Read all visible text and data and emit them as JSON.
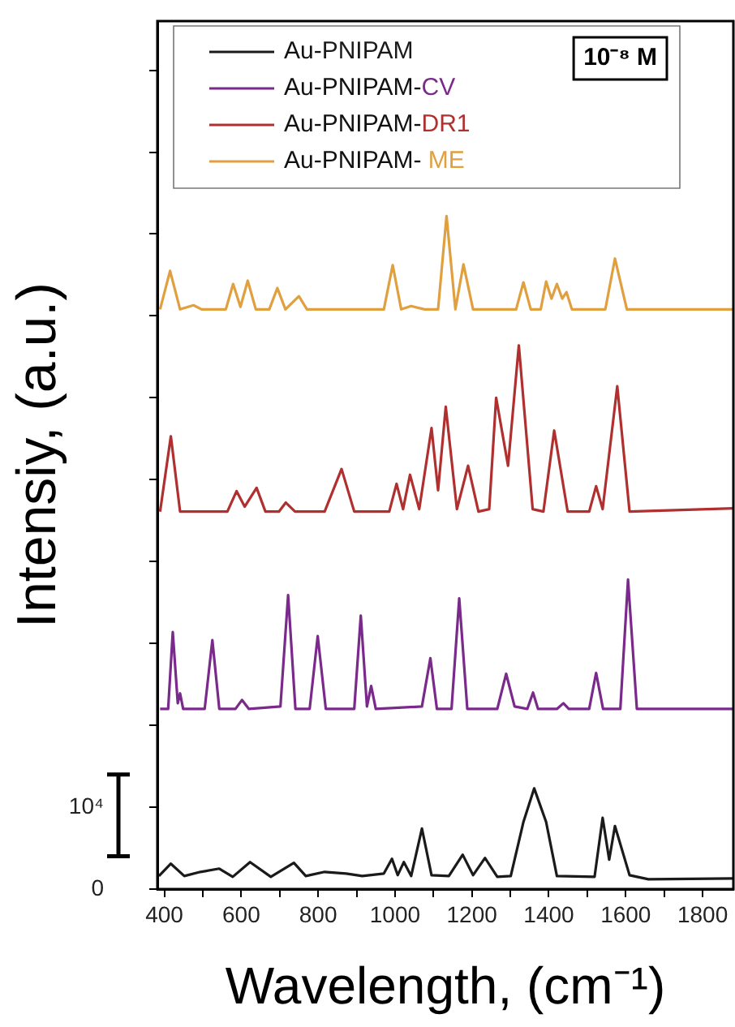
{
  "chart_data": {
    "type": "line",
    "xlabel": "Wavelength, (cm⁻¹)",
    "ylabel": "Intensiy, (a.u.)",
    "annotations": [
      "10⁻⁸ M"
    ],
    "xlim": [
      382,
      1880
    ],
    "xticks": [
      400,
      {
        "value": 500,
        "label": null
      },
      600,
      {
        "value": 700,
        "label": null
      },
      800,
      {
        "value": 900,
        "label": null
      },
      1000,
      {
        "value": 1100,
        "label": null
      },
      1200,
      {
        "value": 1300,
        "label": null
      },
      1400,
      {
        "value": 1500,
        "label": null
      },
      1600,
      {
        "value": 1700,
        "label": null
      },
      1800
    ],
    "ylim": [
      0,
      106000
    ],
    "yticks": [
      {
        "value": 0,
        "label": "0"
      },
      {
        "value": 10000,
        "label": "10⁴"
      },
      {
        "value": 20000,
        "label": null
      },
      {
        "value": 30000,
        "label": null
      },
      {
        "value": 40000,
        "label": null
      },
      {
        "value": 50000,
        "label": null
      },
      {
        "value": 60000,
        "label": null
      },
      {
        "value": 70000,
        "label": null
      },
      {
        "value": 80000,
        "label": null
      },
      {
        "value": 90000,
        "label": null
      },
      {
        "value": 100000,
        "label": null
      }
    ],
    "grid": false,
    "legend": "top left",
    "marker": "none",
    "line_style": "solid",
    "series": [
      {
        "name": "Au-PNIPAM",
        "color": "#1a1a1a",
        "x": [
          386,
          417,
          452,
          494,
          543,
          578,
          623,
          677,
          737,
          768,
          817,
          873,
          915,
          971,
          992,
          1007,
          1023,
          1042,
          1070,
          1095,
          1140,
          1176,
          1203,
          1234,
          1266,
          1301,
          1334,
          1362,
          1393,
          1421,
          1519,
          1540,
          1557,
          1572,
          1610,
          1659,
          1880
        ],
        "values": [
          1600,
          3100,
          1600,
          2100,
          2500,
          1500,
          3300,
          1500,
          3200,
          1600,
          2100,
          1900,
          1600,
          1900,
          3700,
          1700,
          3300,
          1600,
          7400,
          1700,
          1600,
          4200,
          1700,
          3800,
          1500,
          1600,
          8200,
          12300,
          8200,
          1600,
          1500,
          8700,
          3600,
          7700,
          1700,
          1200,
          1300
        ]
      },
      {
        "name": "Au-PNIPAM-CV",
        "color": "#7a2a8a",
        "x": [
          389,
          410,
          422,
          435,
          441,
          449,
          505,
          525,
          543,
          585,
          602,
          620,
          702,
          722,
          741,
          778,
          799,
          820,
          894,
          911,
          927,
          938,
          950,
          1070,
          1092,
          1109,
          1147,
          1167,
          1188,
          1266,
          1289,
          1311,
          1344,
          1359,
          1372,
          1421,
          1438,
          1452,
          1505,
          1523,
          1541,
          1586,
          1606,
          1629,
          1880
        ],
        "values": [
          22000,
          22000,
          31400,
          22700,
          23900,
          22000,
          22000,
          30400,
          22000,
          22000,
          23100,
          22000,
          22300,
          35900,
          22000,
          22000,
          30900,
          22000,
          22000,
          33400,
          22300,
          24800,
          22000,
          22300,
          28200,
          22000,
          22000,
          35500,
          22000,
          22000,
          26300,
          22300,
          22000,
          24000,
          22000,
          22000,
          22700,
          22000,
          22000,
          26400,
          22000,
          22000,
          37800,
          22000,
          22000
        ]
      },
      {
        "name": "Au-PNIPAM-DR1",
        "color": "#b03030",
        "x": [
          389,
          417,
          441,
          564,
          588,
          609,
          640,
          663,
          698,
          716,
          740,
          817,
          861,
          894,
          985,
          1004,
          1021,
          1039,
          1063,
          1095,
          1112,
          1132,
          1161,
          1190,
          1217,
          1245,
          1263,
          1294,
          1322,
          1358,
          1386,
          1414,
          1449,
          1505,
          1523,
          1540,
          1578,
          1610,
          1880
        ],
        "values": [
          46100,
          55300,
          46100,
          46100,
          48600,
          46700,
          49000,
          46100,
          46100,
          47200,
          46100,
          46100,
          51300,
          46100,
          46100,
          49500,
          46400,
          50600,
          46400,
          56300,
          48700,
          58900,
          46400,
          51700,
          46100,
          46400,
          60000,
          51700,
          66400,
          46400,
          46100,
          56000,
          46100,
          46100,
          49200,
          46400,
          61400,
          46100,
          46500
        ]
      },
      {
        "name": "Au-PNIPAM- ME",
        "color": "#e0a040",
        "x": [
          389,
          415,
          441,
          476,
          497,
          560,
          579,
          598,
          617,
          638,
          673,
          694,
          715,
          750,
          771,
          971,
          994,
          1016,
          1042,
          1077,
          1112,
          1134,
          1157,
          1178,
          1203,
          1315,
          1334,
          1353,
          1379,
          1393,
          1407,
          1421,
          1435,
          1446,
          1460,
          1547,
          1572,
          1603,
          1880
        ],
        "values": [
          70800,
          75500,
          70800,
          71300,
          70800,
          70800,
          73900,
          71100,
          74300,
          70800,
          70800,
          73400,
          70800,
          72400,
          70800,
          70800,
          76200,
          70800,
          71200,
          70800,
          70800,
          82200,
          70800,
          76300,
          70800,
          70800,
          74100,
          70800,
          70800,
          74200,
          72100,
          73900,
          72100,
          72900,
          70800,
          70800,
          77000,
          70800,
          70800
        ]
      }
    ]
  }
}
